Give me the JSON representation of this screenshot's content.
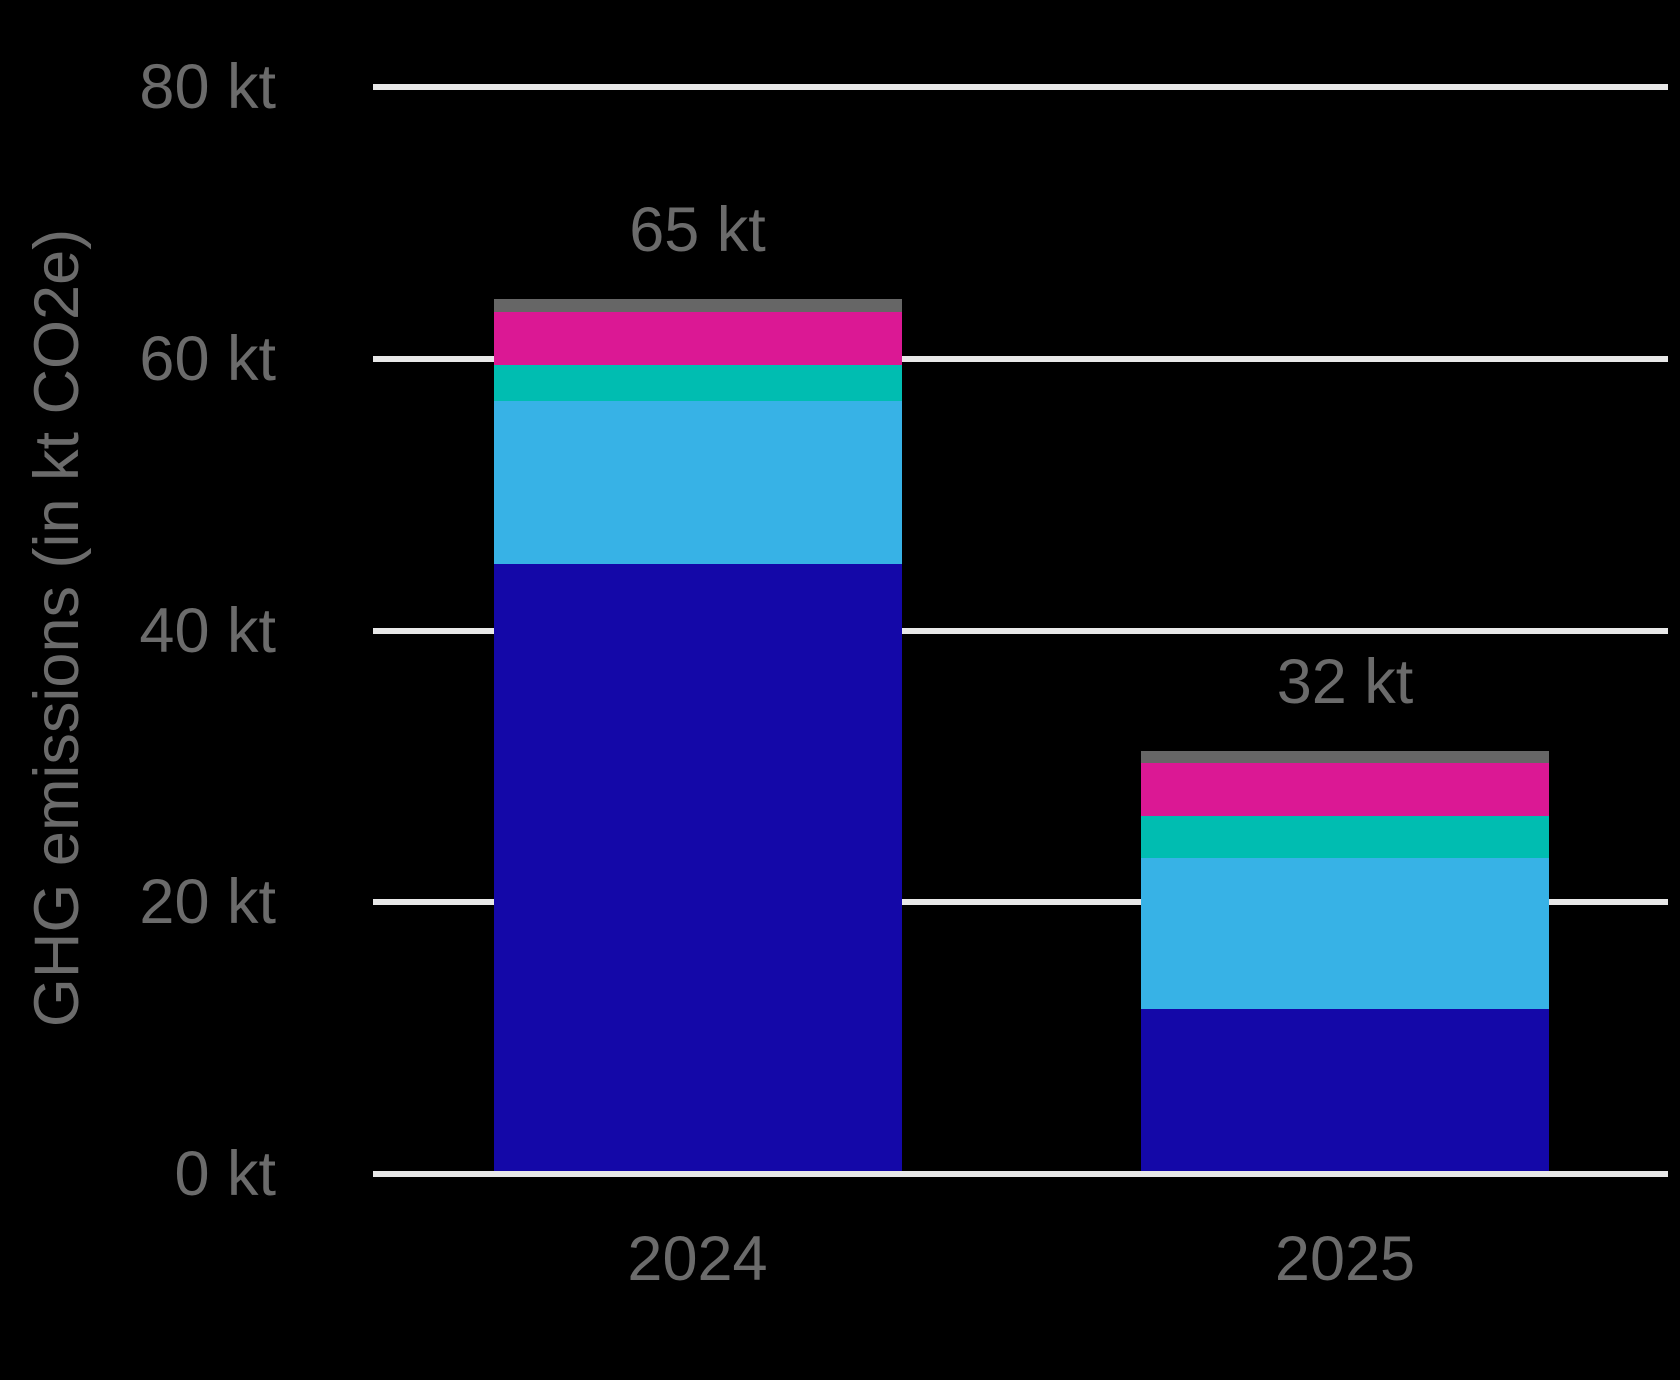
{
  "chart_data": {
    "type": "bar",
    "stacked": true,
    "title": "",
    "xlabel": "",
    "ylabel": "GHG emissions (in kt CO2e)",
    "categories": [
      "2024",
      "2025"
    ],
    "bar_total_labels": [
      "65 kt",
      "32 kt"
    ],
    "series": [
      {
        "name": "segment-navy",
        "color": "#1408A8",
        "values": [
          44.7,
          11.9
        ]
      },
      {
        "name": "segment-sky-blue",
        "color": "#37B2E6",
        "values": [
          12.0,
          11.1
        ]
      },
      {
        "name": "segment-teal",
        "color": "#00BDB1",
        "values": [
          2.6,
          3.1
        ]
      },
      {
        "name": "segment-magenta",
        "color": "#DB1894",
        "values": [
          3.9,
          3.9
        ]
      },
      {
        "name": "segment-gray",
        "color": "#666666",
        "values": [
          1.0,
          0.9
        ]
      }
    ],
    "yticks": [
      {
        "value": 80,
        "label": "80 kt"
      },
      {
        "value": 60,
        "label": "60 kt"
      },
      {
        "value": 40,
        "label": "40 kt"
      },
      {
        "value": 20,
        "label": "20 kt"
      },
      {
        "value": 0,
        "label": "0 kt"
      }
    ],
    "ylim": [
      0,
      80
    ],
    "grid": true,
    "legend": false,
    "colors": {
      "background": "#000000",
      "text": "#6B6B6B",
      "gridline": "#E8E8E8"
    }
  }
}
